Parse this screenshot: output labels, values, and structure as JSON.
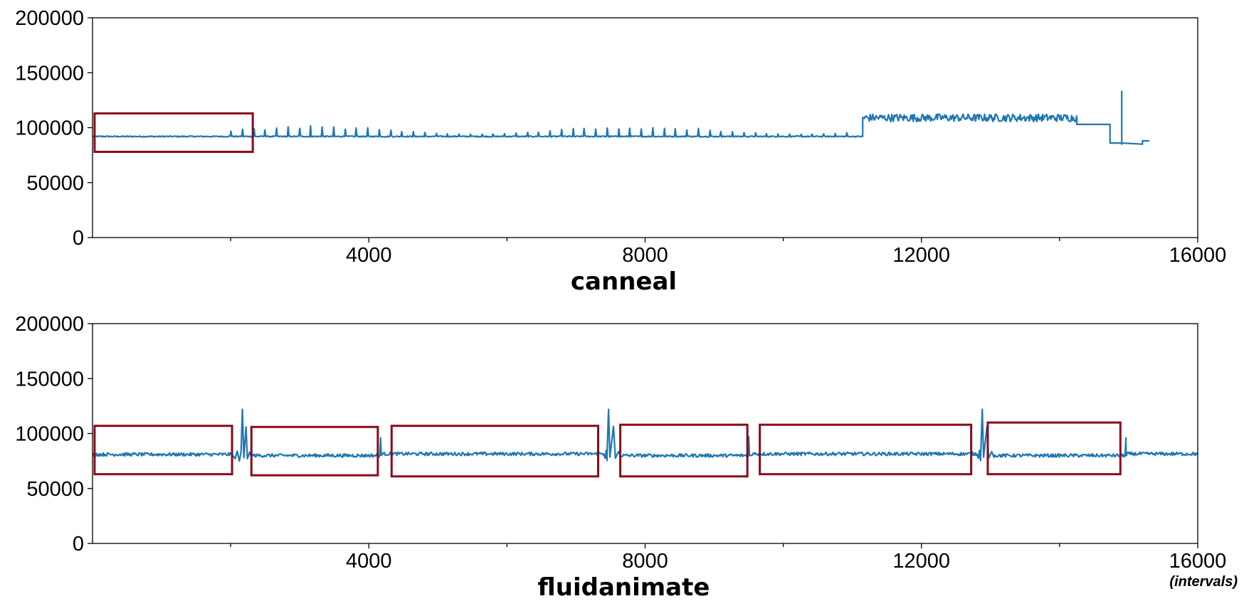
{
  "chart_data": [
    {
      "type": "line",
      "title": "canneal",
      "xlabel": "",
      "ylabel": "",
      "xlim": [
        0,
        16000
      ],
      "ylim": [
        0,
        200000
      ],
      "x_ticks": [
        4000,
        8000,
        12000,
        16000
      ],
      "x_minor_ticks": [
        2000,
        6000,
        10000,
        14000
      ],
      "y_ticks": [
        0,
        50000,
        100000,
        150000,
        200000
      ],
      "grid": false,
      "legend": "none",
      "color": "#1f77b4",
      "segments": [
        {
          "x_start": 0,
          "x_end": 11150,
          "base": 92000,
          "noise": 500
        },
        {
          "x_start": 11150,
          "x_end": 14250,
          "base": 109000,
          "noise": 3500
        },
        {
          "x_start": 14250,
          "x_end": 14730,
          "base": 103000,
          "noise": 0
        },
        {
          "x_start": 14730,
          "x_end": 14900,
          "base": 86000,
          "noise": 0
        },
        {
          "x_start": 14900,
          "x_end": 15200,
          "base": 85000,
          "noise": 0
        },
        {
          "x_start": 15200,
          "x_end": 15300,
          "base": 88000,
          "noise": 0
        }
      ],
      "periodic_spikes": {
        "x_start": 2000,
        "x_end": 11000,
        "step": 165,
        "peak_min": 94000,
        "peak_max": 102000
      },
      "spikes": [
        {
          "x": 14900,
          "y": 133000
        }
      ],
      "phase_boxes": [
        {
          "x0": 30,
          "x1": 2320,
          "y0": 78000,
          "y1": 113000
        }
      ]
    },
    {
      "type": "line",
      "title": "fluidanimate",
      "xlabel": "(intervals)",
      "ylabel": "",
      "xlim": [
        0,
        16000
      ],
      "ylim": [
        0,
        200000
      ],
      "x_ticks": [
        4000,
        8000,
        12000,
        16000
      ],
      "x_minor_ticks": [
        2000,
        6000,
        10000,
        14000
      ],
      "y_ticks": [
        0,
        50000,
        100000,
        150000,
        200000
      ],
      "grid": false,
      "legend": "none",
      "color": "#1f77b4",
      "segments": [
        {
          "x_start": 0,
          "x_end": 2020,
          "base": 81000,
          "noise": 1500
        },
        {
          "x_start": 2300,
          "x_end": 4150,
          "base": 80000,
          "noise": 1500
        },
        {
          "x_start": 4200,
          "x_end": 7400,
          "base": 81500,
          "noise": 1500
        },
        {
          "x_start": 7650,
          "x_end": 9500,
          "base": 80000,
          "noise": 1500
        },
        {
          "x_start": 9550,
          "x_end": 12800,
          "base": 81500,
          "noise": 1500
        },
        {
          "x_start": 13050,
          "x_end": 14950,
          "base": 80000,
          "noise": 1500
        },
        {
          "x_start": 14950,
          "x_end": 16000,
          "base": 81500,
          "noise": 1500
        }
      ],
      "transitions": [
        {
          "x": 2170,
          "peak": 122000
        },
        {
          "x": 7470,
          "peak": 122000
        },
        {
          "x": 12880,
          "peak": 122000
        }
      ],
      "spikes": [
        {
          "x": 4170,
          "y": 96000
        },
        {
          "x": 9500,
          "y": 97000
        },
        {
          "x": 14960,
          "y": 96000
        }
      ],
      "phase_boxes": [
        {
          "x0": 30,
          "x1": 2020,
          "y0": 63000,
          "y1": 107000
        },
        {
          "x0": 2300,
          "x1": 4130,
          "y0": 62000,
          "y1": 106000
        },
        {
          "x0": 4330,
          "x1": 7320,
          "y0": 61000,
          "y1": 107000
        },
        {
          "x0": 7640,
          "x1": 9480,
          "y0": 61000,
          "y1": 108000
        },
        {
          "x0": 9660,
          "x1": 12720,
          "y0": 63000,
          "y1": 108000
        },
        {
          "x0": 12960,
          "x1": 14880,
          "y0": 63000,
          "y1": 110000
        }
      ]
    }
  ]
}
